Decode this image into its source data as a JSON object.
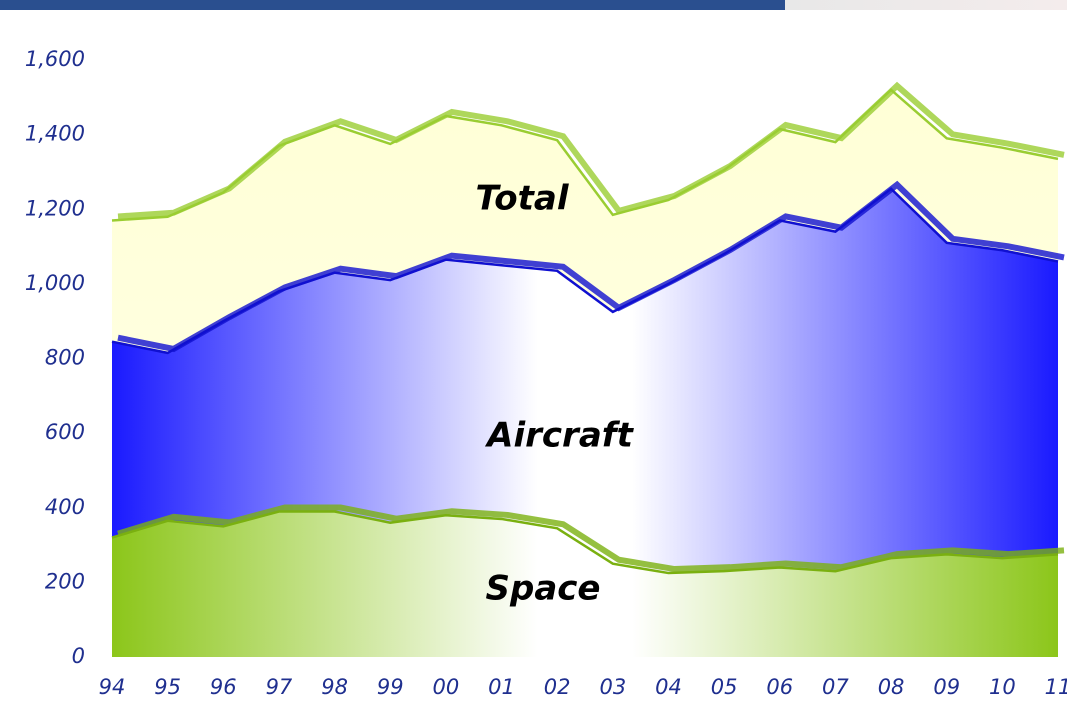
{
  "chart_data": {
    "type": "area",
    "categories": [
      "94",
      "95",
      "96",
      "97",
      "98",
      "99",
      "00",
      "01",
      "02",
      "03",
      "04",
      "05",
      "06",
      "07",
      "08",
      "09",
      "10",
      "11"
    ],
    "series": [
      {
        "name": "Total",
        "color": "#ffffd6",
        "values": [
          1170,
          1180,
          1245,
          1370,
          1425,
          1375,
          1450,
          1425,
          1385,
          1185,
          1225,
          1305,
          1415,
          1380,
          1520,
          1390,
          1365,
          1335
        ]
      },
      {
        "name": "Aircraft",
        "color": "#1a1aff",
        "values": [
          845,
          815,
          900,
          980,
          1030,
          1010,
          1065,
          1050,
          1035,
          925,
          1000,
          1080,
          1170,
          1140,
          1255,
          1110,
          1090,
          1060
        ]
      },
      {
        "name": "Space",
        "color": "#8cc61a",
        "values": [
          320,
          365,
          350,
          390,
          390,
          360,
          380,
          370,
          345,
          250,
          225,
          230,
          240,
          230,
          265,
          275,
          265,
          275
        ]
      }
    ],
    "ylim": [
      0,
      1600
    ],
    "yticks": [
      0,
      200,
      400,
      600,
      800,
      {
        "value": 1000,
        "label": "1,000"
      },
      {
        "value": 1200,
        "label": "1,200"
      },
      {
        "value": 1400,
        "label": "1,400"
      },
      {
        "value": 1600,
        "label": "1,600"
      }
    ]
  }
}
